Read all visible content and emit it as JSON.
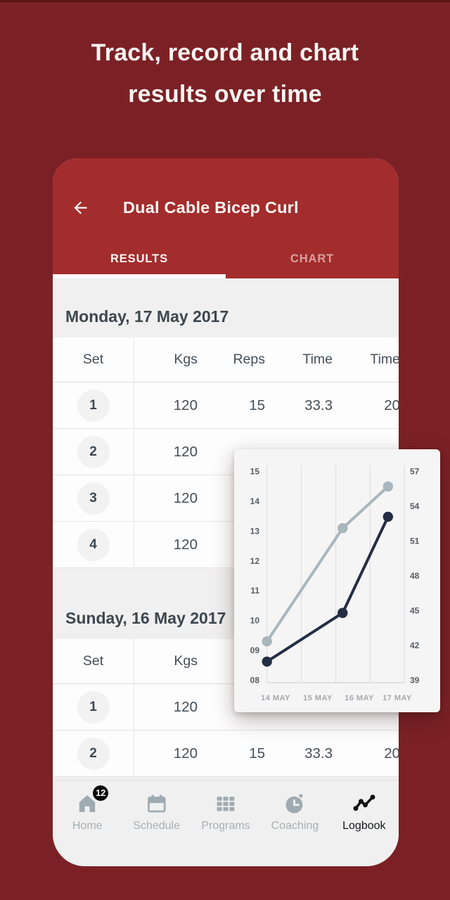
{
  "hero": {
    "title_line1": "Track, record and chart",
    "title_line2": "results over time"
  },
  "app": {
    "header": {
      "back_icon": "arrow-left-icon",
      "title": "Dual Cable Bicep Curl"
    },
    "tabs": [
      {
        "label": "RESULTS",
        "active": true
      },
      {
        "label": "CHART",
        "active": false
      }
    ],
    "sections": [
      {
        "date_header": "Monday, 17 May 2017",
        "columns": [
          "Set",
          "Kgs",
          "Reps",
          "Time",
          "Time"
        ],
        "rows": [
          [
            "1",
            "120",
            "15",
            "33.3",
            "20"
          ],
          [
            "2",
            "120",
            "",
            "",
            ""
          ],
          [
            "3",
            "120",
            "",
            "",
            ""
          ],
          [
            "4",
            "120",
            "",
            "",
            ""
          ]
        ]
      },
      {
        "date_header": "Sunday, 16 May 2017",
        "columns": [
          "Set",
          "Kgs",
          "",
          "",
          ""
        ],
        "rows": [
          [
            "1",
            "120",
            "",
            "",
            ""
          ],
          [
            "2",
            "120",
            "15",
            "33.3",
            "20"
          ]
        ]
      }
    ],
    "bottom_nav": [
      {
        "label": "Home",
        "icon": "home-icon",
        "badge": "12",
        "active": false
      },
      {
        "label": "Schedule",
        "icon": "calendar-icon",
        "badge": "",
        "active": false
      },
      {
        "label": "Programs",
        "icon": "grid-icon",
        "badge": "",
        "active": false
      },
      {
        "label": "Coaching",
        "icon": "stopwatch-icon",
        "badge": "",
        "active": false
      },
      {
        "label": "Logbook",
        "icon": "line-chart-icon",
        "badge": "",
        "active": true
      }
    ]
  },
  "chart_data": {
    "type": "line",
    "title": "",
    "x_axis_labels": [
      "14 MAY",
      "15 MAY",
      "16 MAY",
      "17 MAY"
    ],
    "left_axis": {
      "min": 8,
      "max": 15,
      "ticks": [
        "15",
        "14",
        "13",
        "12",
        "11",
        "10",
        "09",
        "08"
      ]
    },
    "right_axis": {
      "min": 39,
      "max": 57,
      "ticks": [
        "57",
        "54",
        "51",
        "48",
        "45",
        "42",
        "39"
      ]
    },
    "grid": "vertical-only",
    "legend": "none",
    "series": [
      {
        "name": "reps",
        "axis": "left",
        "color": "#a8b6bd",
        "x_fractions": [
          0.0,
          0.55,
          0.88
        ],
        "x_days": [
          "14 MAY",
          "16 MAY",
          "17 MAY"
        ],
        "values": [
          9.3,
          13.1,
          14.5
        ]
      },
      {
        "name": "time",
        "axis": "right",
        "color": "#232e45",
        "x_fractions": [
          0.0,
          0.55,
          0.88
        ],
        "x_days": [
          "14 MAY",
          "16 MAY",
          "17 MAY"
        ],
        "values": [
          40.6,
          44.8,
          53.1
        ]
      }
    ]
  },
  "colors": {
    "page_background": "#7b2125",
    "header_red": "#a32c2c",
    "content_gray": "#f1f0f0",
    "series_light": "#a8b6bd",
    "series_dark": "#232e45",
    "badge_black": "#0c0c0c",
    "axis_tick": "#565d63",
    "x_label_gray": "#a3a9ae"
  }
}
